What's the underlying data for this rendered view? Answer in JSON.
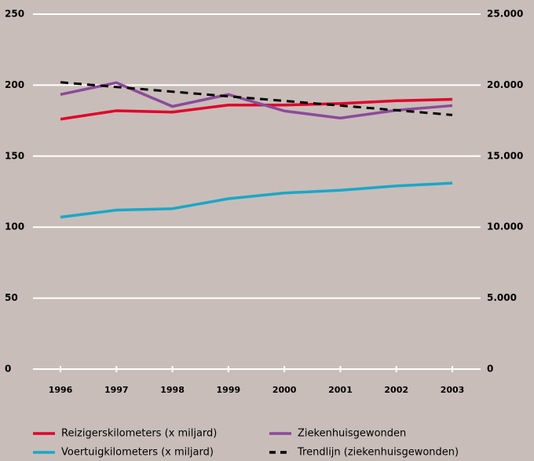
{
  "chart_data": {
    "type": "line",
    "categories": [
      "1996",
      "1997",
      "1998",
      "1999",
      "2000",
      "2001",
      "2002",
      "2003"
    ],
    "ylim": [
      0,
      250
    ],
    "yticks": [
      0,
      50,
      100,
      150,
      200,
      250
    ],
    "y2lim": [
      0,
      25000
    ],
    "y2ticks": [
      0,
      {
        "value": 5000,
        "label": "5.000"
      },
      {
        "value": 10000,
        "label": "10.000"
      },
      {
        "value": 15000,
        "label": "15.000"
      },
      {
        "value": 20000,
        "label": "20.000"
      },
      {
        "value": 25000,
        "label": "25.000"
      }
    ],
    "grid": true,
    "series": [
      {
        "name": "Reizigerskilometers (x miljard)",
        "color": "#e0002a",
        "values": [
          176,
          182,
          181,
          186,
          186,
          187,
          189,
          190
        ]
      },
      {
        "name": "Ziekenhuisgewonden",
        "color": "#8c4a9a",
        "axis": "y2",
        "values": [
          19340,
          20170,
          18500,
          19340,
          18180,
          17680,
          18230,
          18560
        ]
      },
      {
        "name": "Voertuigkilometers (x miljard)",
        "color": "#1aa7c8",
        "values": [
          107,
          112,
          113,
          120,
          124,
          126,
          129,
          131
        ]
      },
      {
        "name": "Trendlijn (ziekenhuisgewonden)",
        "color": "#000000",
        "axis": "y2",
        "style": "dashed",
        "values": [
          20200,
          19870,
          19540,
          19210,
          18890,
          18560,
          18230,
          17900
        ]
      }
    ]
  }
}
